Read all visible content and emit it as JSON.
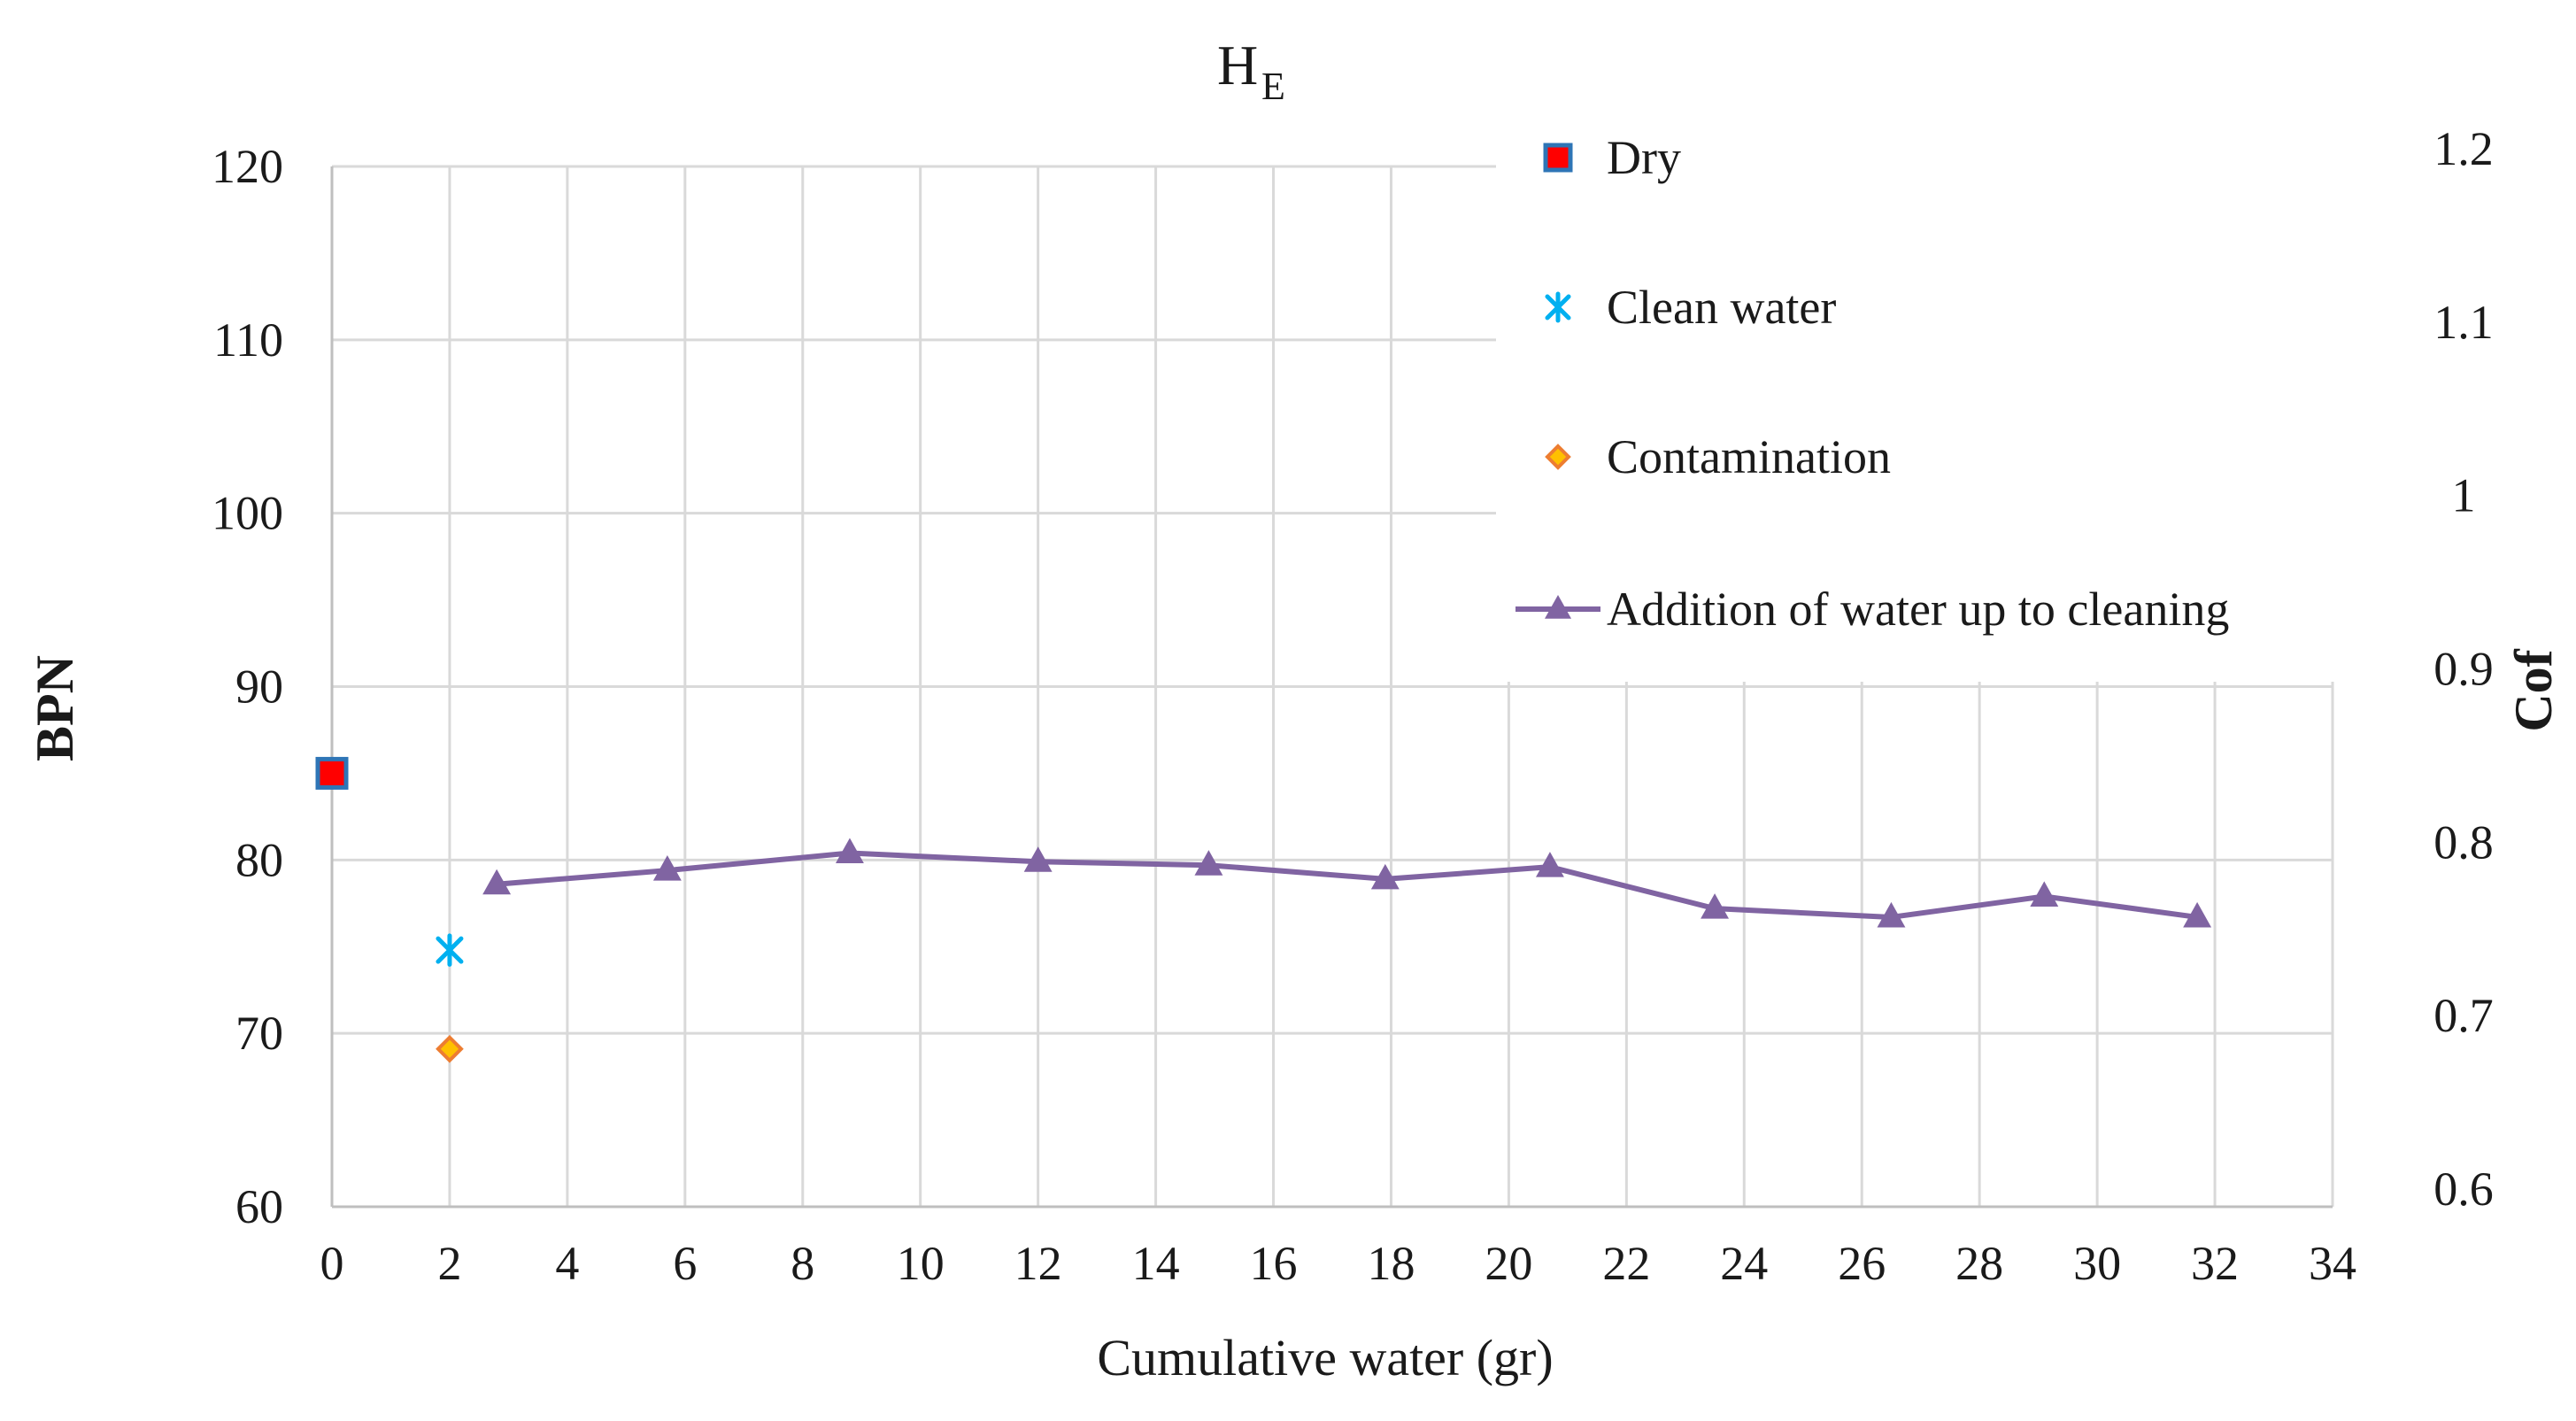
{
  "chart_data": {
    "type": "scatter",
    "title": "H",
    "title_subscript": "E",
    "xlabel": "Cumulative water (gr)",
    "ylabel": "BPN",
    "y2label": "Cof",
    "xlim": [
      0,
      34
    ],
    "ylim": [
      60,
      120
    ],
    "y2lim": [
      0.6,
      1.2
    ],
    "x_ticks": [
      "0",
      "2",
      "4",
      "6",
      "8",
      "10",
      "12",
      "14",
      "16",
      "18",
      "20",
      "22",
      "24",
      "26",
      "28",
      "30",
      "32",
      "34"
    ],
    "y_ticks": [
      "60",
      "70",
      "80",
      "90",
      "100",
      "110",
      "120"
    ],
    "y2_ticks": [
      "0.6",
      "0.7",
      "0.8",
      "0.9",
      "1",
      "1.1",
      "1.2"
    ],
    "grid": true,
    "legend_position": "top-right",
    "series": [
      {
        "name": "Dry",
        "marker": "square",
        "color": "#ff0000",
        "edge_color": "#2e75b6",
        "x": [
          0
        ],
        "y": [
          85
        ]
      },
      {
        "name": "Clean water",
        "marker": "asterisk",
        "color": "#00b0f0",
        "x": [
          2
        ],
        "y": [
          74.8
        ]
      },
      {
        "name": "Contamination",
        "marker": "diamond",
        "color": "#ffc000",
        "edge_color": "#ed7d31",
        "x": [
          2
        ],
        "y": [
          69.1
        ]
      },
      {
        "name": "Addition of water up to cleaning",
        "marker": "triangle",
        "line": true,
        "color": "#8064a2",
        "x": [
          2.8,
          5.7,
          8.8,
          12,
          14.9,
          17.9,
          20.7,
          23.5,
          26.5,
          29.1,
          31.7
        ],
        "y": [
          78.6,
          79.4,
          80.4,
          79.9,
          79.7,
          78.9,
          79.6,
          77.2,
          76.7,
          77.9,
          76.7
        ]
      }
    ]
  }
}
